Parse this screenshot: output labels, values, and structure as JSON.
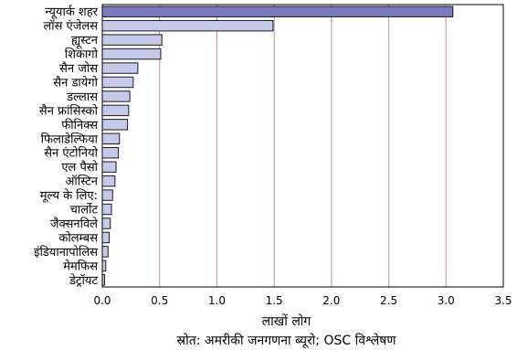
{
  "chart_data": {
    "type": "bar",
    "orientation": "horizontal",
    "categories": [
      "न्यूयार्क शहर",
      "लॉस एंजेलस",
      "ह्यूस्टन",
      "शिकागो",
      "सैन जोस",
      "सैन डायेगो",
      "डल्लास",
      "सैन फ्रांसिस्को",
      "फीनिक्स",
      "फिलाडेल्फिया",
      "सैन एंटोनियो",
      "एल पैसो",
      "ऑस्टिन",
      "मूल्य के लिए:",
      "चार्लोट",
      "जैक्सनविले",
      "कोलम्बस",
      "इंडियानापोलिस",
      "मेमफिस",
      "डेट्रॉयट"
    ],
    "values": [
      3.06,
      1.49,
      0.52,
      0.51,
      0.31,
      0.27,
      0.24,
      0.23,
      0.22,
      0.15,
      0.14,
      0.12,
      0.11,
      0.09,
      0.08,
      0.07,
      0.06,
      0.05,
      0.03,
      0.02
    ],
    "xlabel": "लाखों लोग",
    "ylabel": "",
    "xlim": [
      0,
      3.5
    ],
    "xticks": [
      0,
      0.5,
      1,
      1.5,
      2,
      2.5,
      3,
      3.5
    ],
    "xtick_labels": [
      "0.0",
      "0.5",
      "1.0",
      "1.5",
      "2.0",
      "2.5",
      "3.0",
      "3.5"
    ],
    "grid": "vertical",
    "highlight_color": "#7b7bc0",
    "bar_color": "#c6c9ea",
    "source": "स्रोत: अमरीकी जनगणना ब्यूरो; OSC विश्लेषण"
  }
}
